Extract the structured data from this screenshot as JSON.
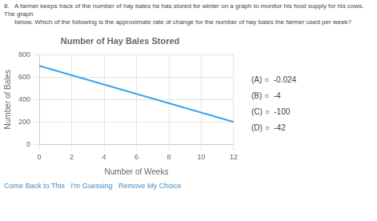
{
  "chart_data": {
    "type": "line",
    "title": "Number of Hay Bales Stored",
    "xlabel": "Number of Weeks",
    "ylabel": "Number of Bales",
    "x": [
      0,
      12
    ],
    "values": [
      700,
      200
    ],
    "xlim": [
      0,
      12
    ],
    "ylim": [
      0,
      800
    ],
    "xticks": [
      0,
      2,
      4,
      6,
      8,
      10,
      12
    ],
    "yticks": [
      0,
      200,
      400,
      600,
      800
    ],
    "grid": true,
    "question": [
      "8.   A farmer keeps track of the number of hay bales he has stored for winter on a graph to monitor his food supply for his cows. The graph",
      "      below. Which of the following is the approximate rate of change for the number of hay bales the farmer used per week?"
    ],
    "choices": [
      "(A) ○  -0.024",
      "(B) ○  -4",
      "(C) ○  -100",
      "(D) ○  -42"
    ],
    "footer": "Come Back to This   I'm Guessing   Remove My Choice"
  }
}
